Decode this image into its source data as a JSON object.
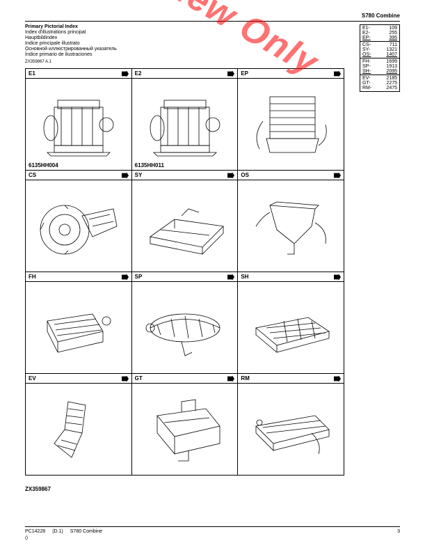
{
  "header": {
    "product": "S780 Combine"
  },
  "titles": {
    "primary": "Primary Pictorial Index",
    "lines": [
      "Index d'illustrations principal",
      "Hauptbildindex",
      "Indice principale illustrato",
      "Основной иллюстрированный указатель",
      "Índice primario de ilustraciones"
    ]
  },
  "ref_code": "ZX359867 A.1",
  "index_table": {
    "groups": [
      {
        "rows": [
          {
            "code": "E1-",
            "page": "109",
            "underline": false
          },
          {
            "code": "E2-",
            "page": "255",
            "underline": false
          },
          {
            "code": "EP-",
            "page": "395",
            "underline": true
          }
        ]
      },
      {
        "rows": [
          {
            "code": "CS-",
            "page": "711",
            "underline": false
          },
          {
            "code": "SY-",
            "page": "1321",
            "underline": false
          },
          {
            "code": "OS-",
            "page": "1407",
            "underline": true
          }
        ]
      },
      {
        "rows": [
          {
            "code": "FH-",
            "page": "1699",
            "underline": false
          },
          {
            "code": "SP-",
            "page": "1913",
            "underline": false
          },
          {
            "code": "SH-",
            "page": "2095",
            "underline": true
          }
        ]
      },
      {
        "rows": [
          {
            "code": "EV-",
            "page": "2185",
            "underline": false
          },
          {
            "code": "GT-",
            "page": "2275",
            "underline": false
          },
          {
            "code": "RM-",
            "page": "2475",
            "underline": false
          }
        ]
      }
    ]
  },
  "cells": [
    {
      "code": "E1",
      "caption": "6135HH004",
      "shape": "engine1"
    },
    {
      "code": "E2",
      "caption": "6135HH011",
      "shape": "engine2"
    },
    {
      "code": "EP",
      "caption": "",
      "shape": "radiator"
    },
    {
      "code": "CS",
      "caption": "",
      "shape": "wheel"
    },
    {
      "code": "SY",
      "caption": "",
      "shape": "frame"
    },
    {
      "code": "OS",
      "caption": "",
      "shape": "hopper"
    },
    {
      "code": "FH",
      "caption": "",
      "shape": "feeder"
    },
    {
      "code": "SP",
      "caption": "",
      "shape": "rotor"
    },
    {
      "code": "SH",
      "caption": "",
      "shape": "shoe"
    },
    {
      "code": "EV",
      "caption": "",
      "shape": "elevator"
    },
    {
      "code": "GT",
      "caption": "",
      "shape": "tank"
    },
    {
      "code": "RM",
      "caption": "",
      "shape": "residue"
    }
  ],
  "watermark": "Preview Only",
  "bottom_ref": "ZX359867",
  "footer": {
    "doc": "PC14228",
    "rev": "(D.1)",
    "product": "S780 Combine",
    "sub": "()",
    "pagenum": "3"
  },
  "colors": {
    "text": "#000000",
    "watermark": "#ff0000",
    "line": "#000000"
  }
}
